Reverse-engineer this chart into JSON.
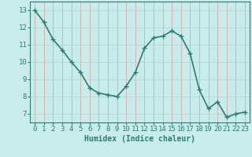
{
  "x": [
    0,
    1,
    2,
    3,
    4,
    5,
    6,
    7,
    8,
    9,
    10,
    11,
    12,
    13,
    14,
    15,
    16,
    17,
    18,
    19,
    20,
    21,
    22,
    23
  ],
  "y": [
    13.0,
    12.3,
    11.3,
    10.7,
    10.0,
    9.4,
    8.5,
    8.2,
    8.1,
    8.0,
    8.6,
    9.4,
    10.8,
    11.4,
    11.5,
    11.8,
    11.5,
    10.5,
    8.4,
    7.3,
    7.7,
    6.8,
    7.0,
    7.1
  ],
  "line_color": "#2e7d6e",
  "marker": "+",
  "marker_size": 4,
  "bg_color": "#c8ecec",
  "grid_color": "#c0d8d8",
  "grid_color_minor": "#e0b0b0",
  "axis_color": "#2e7d6e",
  "tick_color": "#2e7d6e",
  "label_color": "#2e7d6e",
  "xlabel": "Humidex (Indice chaleur)",
  "xlim": [
    -0.5,
    23.5
  ],
  "ylim": [
    6.5,
    13.5
  ],
  "yticks": [
    7,
    8,
    9,
    10,
    11,
    12,
    13
  ],
  "xticks": [
    0,
    1,
    2,
    3,
    4,
    5,
    6,
    7,
    8,
    9,
    10,
    11,
    12,
    13,
    14,
    15,
    16,
    17,
    18,
    19,
    20,
    21,
    22,
    23
  ],
  "xlabel_fontsize": 7,
  "tick_fontsize": 6.5,
  "line_width": 1.2
}
